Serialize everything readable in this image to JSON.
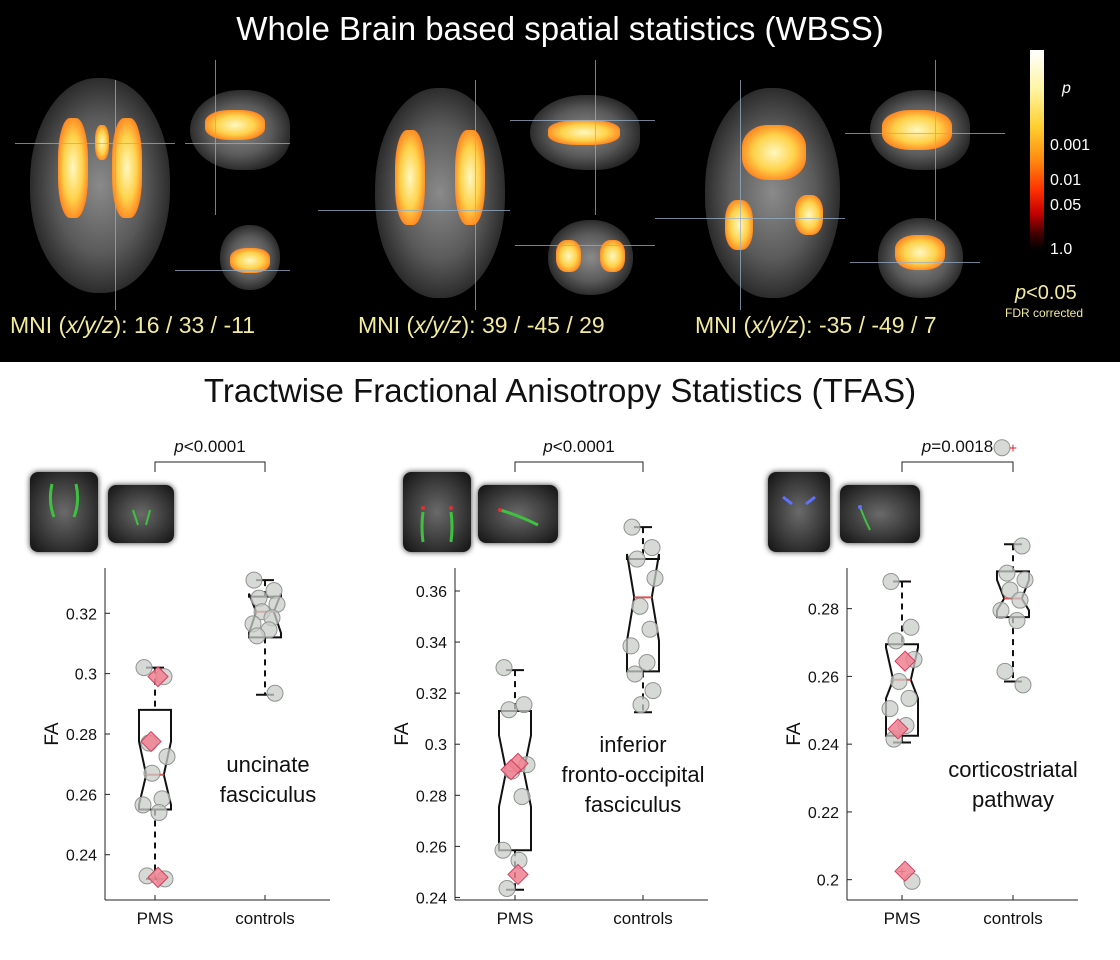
{
  "top_title": "Whole Brain based spatial statistics (WBSS)",
  "bottom_title": "Tractwise Fractional Anisotropy Statistics (TFAS)",
  "mni": [
    {
      "prefix": "MNI (",
      "ital": "x/y/z",
      "suffix": "): 16 / 33 / -11"
    },
    {
      "prefix": "MNI (",
      "ital": "x/y/z",
      "suffix": "): 39 / -45 / 29"
    },
    {
      "prefix": "MNI (",
      "ital": "x/y/z",
      "suffix": "): -35 / -49 / 7"
    }
  ],
  "colorbar": {
    "label": "p",
    "ticks": [
      "0.001",
      "0.01",
      "0.05",
      "1.0"
    ]
  },
  "threshold": {
    "ital": "p",
    "text": "<0.05",
    "note": "FDR corrected"
  },
  "colors": {
    "box": "#111111",
    "median": "#e05050",
    "point_fill": "#c8ccc8",
    "point_stroke": "#909590",
    "diamond_fill": "#f08090",
    "diamond_stroke": "#d04060",
    "blob": "#ffb020",
    "tract_green": "#40c040",
    "tract_blue": "#6070ff"
  },
  "chart_data": [
    {
      "type": "box",
      "ylabel": "FA",
      "ylim": [
        0.225,
        0.335
      ],
      "yticks": [
        0.24,
        0.26,
        0.28,
        0.3,
        0.32
      ],
      "ytick_labels": [
        "0.24",
        "0.26",
        "0.28",
        "0.3",
        "0.32"
      ],
      "categories": [
        "PMS",
        "controls"
      ],
      "significance": {
        "ital": "p",
        "text": "<0.0001"
      },
      "tract_label": [
        "uncinate",
        "fasciculus"
      ],
      "groups": [
        {
          "name": "PMS",
          "whisker_low": 0.232,
          "q1": 0.255,
          "median": 0.2665,
          "q3": 0.288,
          "whisker_high": 0.302,
          "notch_low": 0.2565,
          "notch_high": 0.2775,
          "points": [
            0.302,
            0.299,
            0.277,
            0.2725,
            0.267,
            0.2585,
            0.2565,
            0.254,
            0.233,
            0.232
          ],
          "highlighted": [
            0.299,
            0.2775,
            0.2325
          ]
        },
        {
          "name": "controls",
          "whisker_low": 0.293,
          "q1": 0.312,
          "median": 0.3205,
          "q3": 0.3255,
          "whisker_high": 0.331,
          "notch_low": 0.3135,
          "notch_high": 0.3265,
          "points": [
            0.331,
            0.3275,
            0.325,
            0.323,
            0.3205,
            0.3185,
            0.3165,
            0.3145,
            0.3125,
            0.2935
          ]
        }
      ]
    },
    {
      "type": "box",
      "ylabel": "FA",
      "ylim": [
        0.239,
        0.369
      ],
      "yticks": [
        0.24,
        0.26,
        0.28,
        0.3,
        0.32,
        0.34,
        0.36
      ],
      "ytick_labels": [
        "0.24",
        "0.26",
        "0.28",
        "0.3",
        "0.32",
        "0.34",
        "0.36"
      ],
      "categories": [
        "PMS",
        "controls"
      ],
      "significance": {
        "ital": "p",
        "text": "<0.0001"
      },
      "tract_label": [
        "inferior",
        "fronto-occipital",
        "fasciculus"
      ],
      "groups": [
        {
          "name": "PMS",
          "whisker_low": 0.243,
          "q1": 0.2585,
          "median": 0.2895,
          "q3": 0.313,
          "whisker_high": 0.329,
          "notch_low": 0.2755,
          "notch_high": 0.3035,
          "points": [
            0.33,
            0.3155,
            0.3135,
            0.292,
            0.2895,
            0.2795,
            0.2585,
            0.2545,
            0.2435
          ],
          "highlighted": [
            0.2925,
            0.29,
            0.249
          ]
        },
        {
          "name": "controls",
          "whisker_low": 0.3125,
          "q1": 0.3285,
          "median": 0.3575,
          "q3": 0.3725,
          "whisker_high": 0.385,
          "notch_low": 0.3405,
          "notch_high": 0.3745,
          "points": [
            0.385,
            0.377,
            0.3725,
            0.365,
            0.354,
            0.345,
            0.3385,
            0.332,
            0.3275,
            0.321,
            0.3155
          ]
        }
      ]
    },
    {
      "type": "box",
      "ylabel": "FA",
      "ylim": [
        0.194,
        0.292
      ],
      "yticks": [
        0.2,
        0.22,
        0.24,
        0.26,
        0.28
      ],
      "ytick_labels": [
        "0.2",
        "0.22",
        "0.24",
        "0.26",
        "0.28"
      ],
      "categories": [
        "PMS",
        "controls"
      ],
      "significance": {
        "ital": "p",
        "text": "=0.0018"
      },
      "tract_label": [
        "corticostriatal",
        "pathway"
      ],
      "groups": [
        {
          "name": "PMS",
          "whisker_low": 0.2405,
          "q1": 0.2425,
          "median": 0.259,
          "q3": 0.2695,
          "whisker_high": 0.288,
          "notch_low": 0.2535,
          "notch_high": 0.2685,
          "outliers": [
            0.2025
          ],
          "points": [
            0.288,
            0.2745,
            0.2705,
            0.265,
            0.2585,
            0.2535,
            0.2505,
            0.2455,
            0.2415,
            0.1995
          ],
          "highlighted": [
            0.2645,
            0.2445,
            0.2025
          ]
        },
        {
          "name": "controls",
          "whisker_low": 0.2585,
          "q1": 0.2775,
          "median": 0.283,
          "q3": 0.291,
          "whisker_high": 0.299,
          "notch_low": 0.2795,
          "notch_high": 0.2885,
          "outliers": [
            0.3275
          ],
          "points": [
            0.3275,
            0.2985,
            0.2905,
            0.2885,
            0.2855,
            0.2825,
            0.2795,
            0.2765,
            0.2615,
            0.2575
          ]
        }
      ]
    }
  ]
}
